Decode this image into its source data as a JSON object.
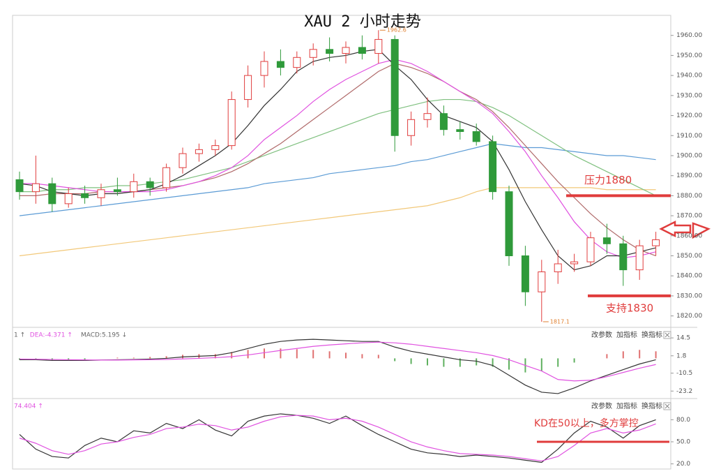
{
  "chart_data": [
    {
      "type": "candlestick",
      "title": "XAU 2 小时走势",
      "open": [
        1888,
        1882,
        1886,
        1876,
        1881,
        1879,
        1883,
        1882,
        1887,
        1884,
        1894,
        1901,
        1903,
        1905,
        1928,
        1940,
        1947,
        1944,
        1949,
        1953,
        1951,
        1954,
        1951,
        1958,
        1910,
        1918,
        1921,
        1913,
        1912,
        1907,
        1882,
        1850,
        1832,
        1842,
        1846,
        1847,
        1859,
        1856,
        1843,
        1855
      ],
      "high": [
        1892,
        1900,
        1889,
        1884,
        1885,
        1886,
        1889,
        1891,
        1889,
        1896,
        1904,
        1906,
        1908,
        1932,
        1945,
        1952,
        1953,
        1952,
        1956,
        1959,
        1957,
        1960,
        1962.6,
        1960,
        1922,
        1929,
        1925,
        1917,
        1916,
        1910,
        1885,
        1855,
        1848,
        1853,
        1851,
        1862,
        1866,
        1860,
        1858,
        1862
      ],
      "low": [
        1878,
        1876,
        1872,
        1874,
        1876,
        1875,
        1880,
        1879,
        1880,
        1882,
        1891,
        1897,
        1900,
        1903,
        1924,
        1934,
        1940,
        1941,
        1945,
        1947,
        1946,
        1948,
        1946,
        1902,
        1905,
        1914,
        1910,
        1908,
        1905,
        1878,
        1845,
        1825,
        1817.1,
        1836,
        1842,
        1845,
        1851,
        1835,
        1838,
        1850
      ],
      "close": [
        1882,
        1886,
        1876,
        1881,
        1879,
        1883,
        1882,
        1887,
        1884,
        1894,
        1901,
        1903,
        1905,
        1928,
        1940,
        1947,
        1944,
        1949,
        1953,
        1951,
        1954,
        1951,
        1958,
        1910,
        1918,
        1921,
        1913,
        1912,
        1907,
        1882,
        1850,
        1832,
        1842,
        1846,
        1847,
        1859,
        1856,
        1843,
        1855,
        1858
      ],
      "up_color": "#e03c3c",
      "down_color": "#2f9a3a",
      "series": [
        {
          "color": "#f2c879",
          "values": [
            1850,
            1851,
            1852,
            1853,
            1854,
            1855,
            1856,
            1857,
            1858,
            1859,
            1860,
            1861,
            1862,
            1863,
            1864,
            1865,
            1866,
            1867,
            1868,
            1869,
            1870,
            1871,
            1872,
            1873,
            1874,
            1875,
            1877,
            1879,
            1882,
            1884,
            1884,
            1884,
            1884,
            1884,
            1884,
            1884,
            1883,
            1883,
            1883,
            1883
          ]
        },
        {
          "color": "#5b9bd5",
          "values": [
            1870,
            1871,
            1872,
            1873,
            1874,
            1875,
            1876,
            1877,
            1878,
            1879,
            1880,
            1881,
            1882,
            1883,
            1884,
            1886,
            1887,
            1888,
            1889,
            1891,
            1892,
            1893,
            1894,
            1895,
            1897,
            1898,
            1900,
            1902,
            1904,
            1906,
            1905,
            1904,
            1904,
            1903,
            1902,
            1901,
            1900,
            1900,
            1899,
            1898
          ]
        },
        {
          "color": "#7fc07f",
          "values": [
            1882,
            1882,
            1883,
            1883,
            1884,
            1884,
            1885,
            1885,
            1886,
            1887,
            1888,
            1890,
            1892,
            1894,
            1897,
            1900,
            1903,
            1906,
            1909,
            1912,
            1915,
            1918,
            1921,
            1923,
            1925,
            1927,
            1928,
            1928,
            1927,
            1924,
            1920,
            1915,
            1910,
            1905,
            1900,
            1896,
            1892,
            1888,
            1884,
            1880
          ]
        },
        {
          "color": "#b06a6a",
          "values": [
            1880,
            1880,
            1881,
            1881,
            1881,
            1882,
            1882,
            1882,
            1883,
            1884,
            1885,
            1887,
            1889,
            1892,
            1896,
            1901,
            1906,
            1912,
            1918,
            1924,
            1930,
            1936,
            1942,
            1946,
            1944,
            1941,
            1937,
            1932,
            1928,
            1922,
            1914,
            1905,
            1896,
            1887,
            1879,
            1871,
            1864,
            1858,
            1853,
            1850
          ]
        },
        {
          "color": "#e052e0",
          "values": [
            1886,
            1886,
            1885,
            1884,
            1883,
            1882,
            1882,
            1882,
            1882,
            1883,
            1885,
            1887,
            1890,
            1894,
            1900,
            1908,
            1914,
            1920,
            1927,
            1933,
            1938,
            1942,
            1946,
            1948,
            1946,
            1942,
            1937,
            1932,
            1927,
            1921,
            1912,
            1902,
            1890,
            1879,
            1867,
            1858,
            1852,
            1849,
            1850,
            1852
          ]
        },
        {
          "color": "#333333",
          "values": [
            1886,
            1885,
            1882,
            1881,
            1880,
            1881,
            1881,
            1882,
            1883,
            1886,
            1890,
            1895,
            1900,
            1906,
            1915,
            1925,
            1933,
            1942,
            1947,
            1949,
            1950,
            1952,
            1953,
            1945,
            1938,
            1928,
            1920,
            1917,
            1914,
            1907,
            1893,
            1877,
            1863,
            1850,
            1843,
            1845,
            1850,
            1850,
            1852,
            1854
          ]
        }
      ],
      "ylim": [
        1815,
        1970
      ],
      "yticks": [
        {
          "value": 1820,
          "label": "1820.00"
        },
        {
          "value": 1830,
          "label": "1830.00"
        },
        {
          "value": 1840,
          "label": "1840.00"
        },
        {
          "value": 1850,
          "label": "1850.00"
        },
        {
          "value": 1860,
          "label": "1860.00"
        },
        {
          "value": 1870,
          "label": "1870.00"
        },
        {
          "value": 1880,
          "label": "1880.00"
        },
        {
          "value": 1890,
          "label": "1890.00"
        },
        {
          "value": 1900,
          "label": "1900.00"
        },
        {
          "value": 1910,
          "label": "1910.00"
        },
        {
          "value": 1920,
          "label": "1920.00"
        },
        {
          "value": 1930,
          "label": "1930.00"
        },
        {
          "value": 1940,
          "label": "1940.00"
        },
        {
          "value": 1950,
          "label": "1950.00"
        },
        {
          "value": 1960,
          "label": "1960.00"
        }
      ],
      "annotations": [
        {
          "text": "压力1880",
          "value": 1880,
          "color": "#e03c3c"
        },
        {
          "text": "支持1830",
          "value": 1830,
          "color": "#e03c3c"
        }
      ]
    },
    {
      "type": "macd",
      "readouts": [
        "1 ↑",
        "DEA:-4.371 ↑",
        "MACD:5.195 ↓"
      ],
      "buttons": [
        "改参数",
        "加指标",
        "换指标"
      ],
      "histogram": [
        -1,
        -1,
        -1.5,
        -1,
        -1,
        0,
        0.5,
        0.5,
        1,
        1.5,
        2.5,
        3,
        3,
        4.5,
        6,
        7,
        7,
        6.5,
        6,
        5,
        4,
        3,
        2.5,
        -2,
        -4,
        -5,
        -6,
        -6,
        -5,
        -6,
        -8,
        -10,
        -9,
        -6,
        -3,
        0,
        3,
        5,
        6,
        5
      ],
      "up_color": "#e07070",
      "down_color": "#5fb05f",
      "series": [
        {
          "color": "#333333",
          "values": [
            -1,
            -1,
            -1.5,
            -1.5,
            -1.5,
            -1.2,
            -1,
            -0.8,
            -0.5,
            0,
            1,
            1.5,
            2,
            4,
            7,
            10,
            12,
            13,
            13.5,
            13,
            12.5,
            12,
            12,
            8,
            5,
            3,
            1,
            -1,
            -2,
            -5,
            -12,
            -19,
            -24,
            -25,
            -21,
            -16,
            -12,
            -8,
            -4,
            -1
          ]
        },
        {
          "color": "#e052e0",
          "values": [
            -0.5,
            -0.6,
            -0.8,
            -1,
            -1.1,
            -1.2,
            -1.2,
            -1.1,
            -1,
            -0.8,
            -0.4,
            0,
            0.5,
            1.2,
            2.4,
            4,
            5.6,
            7,
            8.5,
            9.5,
            10.3,
            11,
            11.5,
            11,
            10,
            8.5,
            7,
            5.5,
            4,
            2,
            -1,
            -5,
            -9,
            -15,
            -16,
            -15.5,
            -13,
            -10,
            -7,
            -4.371
          ]
        }
      ],
      "ylim": [
        -28,
        20.5
      ],
      "yticks": [
        14.5,
        1.8,
        -10.5,
        -23.2
      ]
    },
    {
      "type": "kd",
      "readouts": [
        "74.404 ↑"
      ],
      "buttons": [
        "改参数",
        "加指标",
        "换指标"
      ],
      "series": [
        {
          "color": "#333333",
          "values": [
            60,
            40,
            30,
            28,
            45,
            55,
            50,
            65,
            62,
            75,
            68,
            80,
            66,
            58,
            78,
            85,
            88,
            86,
            82,
            75,
            85,
            72,
            60,
            50,
            40,
            35,
            33,
            30,
            32,
            30,
            28,
            25,
            22,
            40,
            62,
            78,
            70,
            55,
            72,
            80
          ]
        },
        {
          "color": "#e052e0",
          "values": [
            55,
            48,
            38,
            33,
            38,
            47,
            50,
            56,
            60,
            68,
            70,
            74,
            72,
            66,
            70,
            78,
            84,
            86,
            85,
            80,
            82,
            78,
            70,
            60,
            50,
            43,
            38,
            34,
            33,
            32,
            30,
            27,
            24,
            30,
            45,
            62,
            68,
            62,
            66,
            74.404
          ]
        }
      ],
      "ylim": [
        13,
        106
      ],
      "yticks": [
        {
          "value": 80,
          "label": "80.0"
        },
        {
          "value": 50,
          "label": "50.0"
        },
        {
          "value": 20,
          "label": "20.0"
        }
      ],
      "annotations": [
        {
          "text": "KD在50以上，多方掌控",
          "value": 50,
          "color": "#e03c3c"
        }
      ]
    }
  ]
}
